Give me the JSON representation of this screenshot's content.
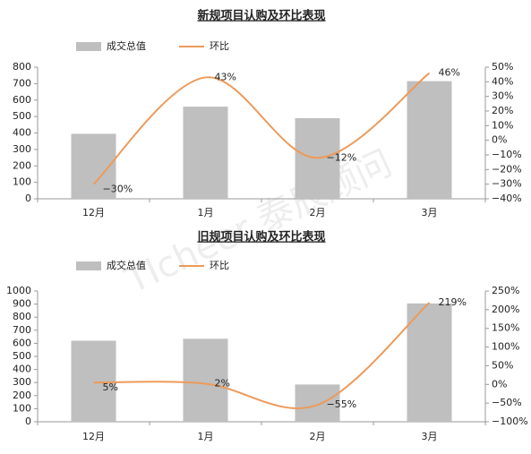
{
  "watermark": "TIcheer 泰辰顾问",
  "chart_data": [
    {
      "type": "bar-line",
      "title": "新规项目认购及环比表现",
      "categories": [
        "12月",
        "1月",
        "2月",
        "3月"
      ],
      "series": [
        {
          "name": "成交总值",
          "color": "#bfbfbf",
          "values": [
            395,
            560,
            490,
            715
          ]
        },
        {
          "name": "环比",
          "color": "#ed9a5a",
          "axis": "y2",
          "values": [
            -30,
            43,
            -12,
            46
          ],
          "value_labels": [
            "−30%",
            "43%",
            "−12%",
            "46%"
          ]
        }
      ],
      "ylim": [
        0,
        800
      ],
      "yticks": [
        0,
        100,
        200,
        300,
        400,
        500,
        600,
        700,
        800
      ],
      "y2lim": [
        -40,
        50
      ],
      "y2ticks": [
        {
          "value": -40,
          "label": "−40%"
        },
        {
          "value": -30,
          "label": "−30%"
        },
        {
          "value": -20,
          "label": "−20%"
        },
        {
          "value": -10,
          "label": "−10%"
        },
        {
          "value": 0,
          "label": "0%"
        },
        {
          "value": 10,
          "label": "10%"
        },
        {
          "value": 20,
          "label": "20%"
        },
        {
          "value": 30,
          "label": "30%"
        },
        {
          "value": 40,
          "label": "40%"
        },
        {
          "value": 50,
          "label": "50%"
        }
      ]
    },
    {
      "type": "bar-line",
      "title": "旧规项目认购及环比表现",
      "categories": [
        "12月",
        "1月",
        "2月",
        "3月"
      ],
      "series": [
        {
          "name": "成交总值",
          "color": "#bfbfbf",
          "values": [
            620,
            635,
            285,
            905
          ]
        },
        {
          "name": "环比",
          "color": "#ed9a5a",
          "axis": "y2",
          "values": [
            5,
            2,
            -55,
            219
          ],
          "value_labels": [
            "5%",
            "2%",
            "−55%",
            "219%"
          ]
        }
      ],
      "ylim": [
        0,
        1000
      ],
      "yticks": [
        0,
        100,
        200,
        300,
        400,
        500,
        600,
        700,
        800,
        900,
        1000
      ],
      "y2lim": [
        -100,
        250
      ],
      "y2ticks": [
        {
          "value": -100,
          "label": "−100%"
        },
        {
          "value": -50,
          "label": "−50%"
        },
        {
          "value": 0,
          "label": "0%"
        },
        {
          "value": 50,
          "label": "50%"
        },
        {
          "value": 100,
          "label": "100%"
        },
        {
          "value": 150,
          "label": "150%"
        },
        {
          "value": 200,
          "label": "200%"
        },
        {
          "value": 250,
          "label": "250%"
        }
      ]
    }
  ]
}
